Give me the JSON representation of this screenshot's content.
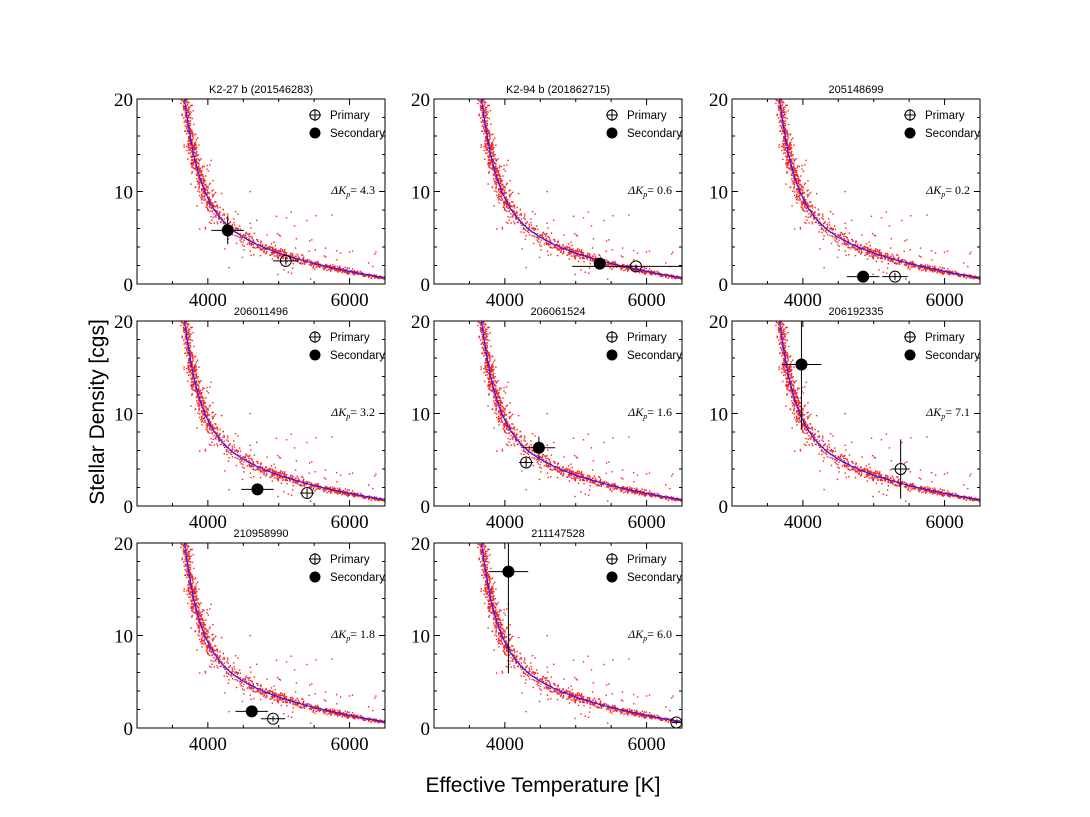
{
  "figure": {
    "xlabel": "Effective Temperature [K]",
    "ylabel": "Stellar Density [cgs]"
  },
  "legend": {
    "primary": "Primary",
    "secondary": "Secondary",
    "delta_prefix": "ΔK",
    "delta_sub": "p",
    "delta_eq": "= "
  },
  "colors": {
    "scatter": "#ff2020",
    "model_line": "#2020ff",
    "markers": "#000000"
  },
  "chart_data": [
    {
      "type": "scatter",
      "title": "K2-27 b (201546283)",
      "xlim": [
        3000,
        6500
      ],
      "ylim": [
        0,
        20
      ],
      "xticks": [
        4000,
        6000
      ],
      "yticks": [
        0,
        10,
        20
      ],
      "delta_kp": "4.3",
      "primary": {
        "teff": 5100,
        "rho": 2.5,
        "teff_err": 180,
        "rho_err": 0.4
      },
      "secondary": {
        "teff": 4280,
        "rho": 5.8,
        "teff_err": 230,
        "rho_err": 1.5
      }
    },
    {
      "type": "scatter",
      "title": "K2-94 b (201862715)",
      "xlim": [
        3000,
        6500
      ],
      "ylim": [
        0,
        20
      ],
      "xticks": [
        4000,
        6000
      ],
      "yticks": [
        0,
        10,
        20
      ],
      "delta_kp": "0.6",
      "primary": {
        "teff": 5850,
        "rho": 1.9,
        "teff_err": 900,
        "rho_err": 0.2
      },
      "secondary": {
        "teff": 5340,
        "rho": 2.2,
        "teff_err": 80,
        "rho_err": 0.2
      }
    },
    {
      "type": "scatter",
      "title": "205148699",
      "xlim": [
        3000,
        6500
      ],
      "ylim": [
        0,
        20
      ],
      "xticks": [
        4000,
        6000
      ],
      "yticks": [
        0,
        10,
        20
      ],
      "delta_kp": "0.2",
      "primary": {
        "teff": 5300,
        "rho": 0.8,
        "teff_err": 180,
        "rho_err": 0.4
      },
      "secondary": {
        "teff": 4850,
        "rho": 0.8,
        "teff_err": 230,
        "rho_err": 0.3
      }
    },
    {
      "type": "scatter",
      "title": "206011496",
      "xlim": [
        3000,
        6500
      ],
      "ylim": [
        0,
        20
      ],
      "xticks": [
        4000,
        6000
      ],
      "yticks": [
        0,
        10,
        20
      ],
      "delta_kp": "3.2",
      "primary": {
        "teff": 5400,
        "rho": 1.4,
        "teff_err": 100,
        "rho_err": 0.5
      },
      "secondary": {
        "teff": 4700,
        "rho": 1.8,
        "teff_err": 230,
        "rho_err": 0.3
      }
    },
    {
      "type": "scatter",
      "title": "206061524",
      "xlim": [
        3000,
        6500
      ],
      "ylim": [
        0,
        20
      ],
      "xticks": [
        4000,
        6000
      ],
      "yticks": [
        0,
        10,
        20
      ],
      "delta_kp": "1.6",
      "primary": {
        "teff": 4300,
        "rho": 4.7,
        "teff_err": 100,
        "rho_err": 0.5
      },
      "secondary": {
        "teff": 4480,
        "rho": 6.3,
        "teff_err": 230,
        "rho_err": 1.2
      }
    },
    {
      "type": "scatter",
      "title": "206192335",
      "xlim": [
        3000,
        6500
      ],
      "ylim": [
        0,
        20
      ],
      "xticks": [
        4000,
        6000
      ],
      "yticks": [
        0,
        10,
        20
      ],
      "delta_kp": "7.1",
      "primary": {
        "teff": 5380,
        "rho": 4.0,
        "teff_err": 130,
        "rho_err": 3.2
      },
      "secondary": {
        "teff": 3980,
        "rho": 15.3,
        "teff_err": 280,
        "rho_err": 7.0
      }
    },
    {
      "type": "scatter",
      "title": "210958990",
      "xlim": [
        3000,
        6500
      ],
      "ylim": [
        0,
        20
      ],
      "xticks": [
        4000,
        6000
      ],
      "yticks": [
        0,
        10,
        20
      ],
      "delta_kp": "1.8",
      "primary": {
        "teff": 4920,
        "rho": 1.0,
        "teff_err": 170,
        "rho_err": 0.3
      },
      "secondary": {
        "teff": 4620,
        "rho": 1.8,
        "teff_err": 230,
        "rho_err": 0.3
      }
    },
    {
      "type": "scatter",
      "title": "211147528",
      "xlim": [
        3000,
        6500
      ],
      "ylim": [
        0,
        20
      ],
      "xticks": [
        4000,
        6000
      ],
      "yticks": [
        0,
        10,
        20
      ],
      "delta_kp": "6.0",
      "primary": {
        "teff": 6420,
        "rho": 0.6,
        "teff_err": 60,
        "rho_err": 0.2
      },
      "secondary": {
        "teff": 4050,
        "rho": 16.9,
        "teff_err": 280,
        "rho_err": 11.0
      }
    }
  ]
}
